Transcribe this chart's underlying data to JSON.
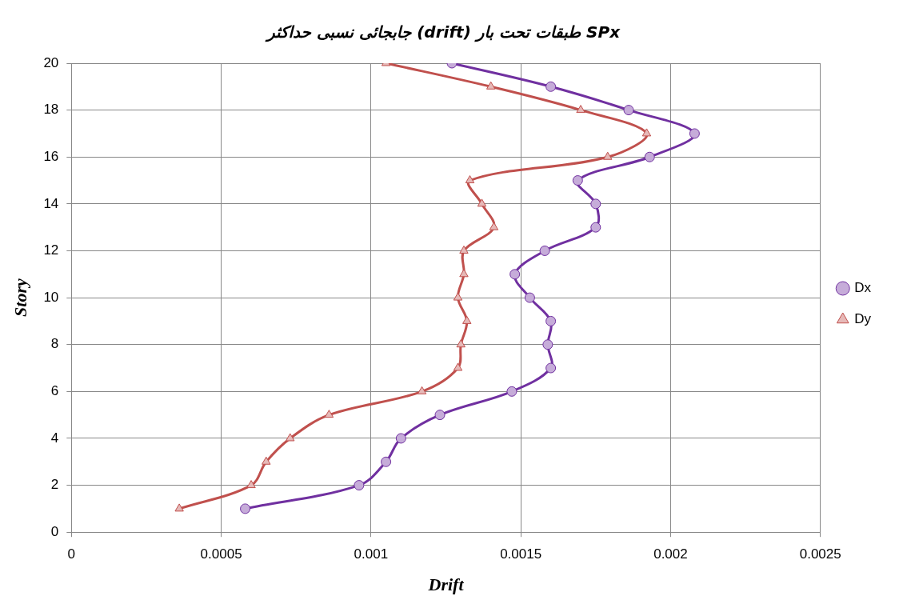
{
  "chart_data": {
    "type": "line",
    "title": "جابجائی نسبی حداکثر (drift) طبقات تحت بار SPx",
    "xlabel": "Drift",
    "ylabel": "Story",
    "xlim": [
      0,
      0.0025
    ],
    "xticks": [
      0,
      0.0005,
      0.001,
      0.0015,
      0.002,
      0.0025
    ],
    "ylim": [
      0,
      20
    ],
    "yticks": [
      0,
      2,
      4,
      6,
      8,
      10,
      12,
      14,
      16,
      18,
      20
    ],
    "grid": true,
    "legend": "right",
    "line_style": "solid",
    "series": [
      {
        "name": "Dx",
        "color": "#7030a0",
        "marker": "circle",
        "x": [
          0.00058,
          0.00096,
          0.00105,
          0.0011,
          0.00123,
          0.00147,
          0.0016,
          0.00159,
          0.0016,
          0.00153,
          0.00148,
          0.00158,
          0.00175,
          0.00175,
          0.00169,
          0.00193,
          0.00208,
          0.00186,
          0.0016,
          0.00127
        ],
        "values": [
          1,
          2,
          3,
          4,
          5,
          6,
          7,
          8,
          9,
          10,
          11,
          12,
          13,
          14,
          15,
          16,
          17,
          18,
          19,
          20
        ]
      },
      {
        "name": "Dy",
        "color": "#c0504d",
        "marker": "triangle",
        "x": [
          0.00036,
          0.0006,
          0.00065,
          0.00073,
          0.00086,
          0.00117,
          0.00129,
          0.0013,
          0.00132,
          0.00129,
          0.00131,
          0.00131,
          0.00141,
          0.00137,
          0.00133,
          0.00179,
          0.00192,
          0.0017,
          0.0014,
          0.00105
        ],
        "values": [
          1,
          2,
          3,
          4,
          5,
          6,
          7,
          8,
          9,
          10,
          11,
          12,
          13,
          14,
          15,
          16,
          17,
          18,
          19,
          20
        ]
      }
    ]
  }
}
